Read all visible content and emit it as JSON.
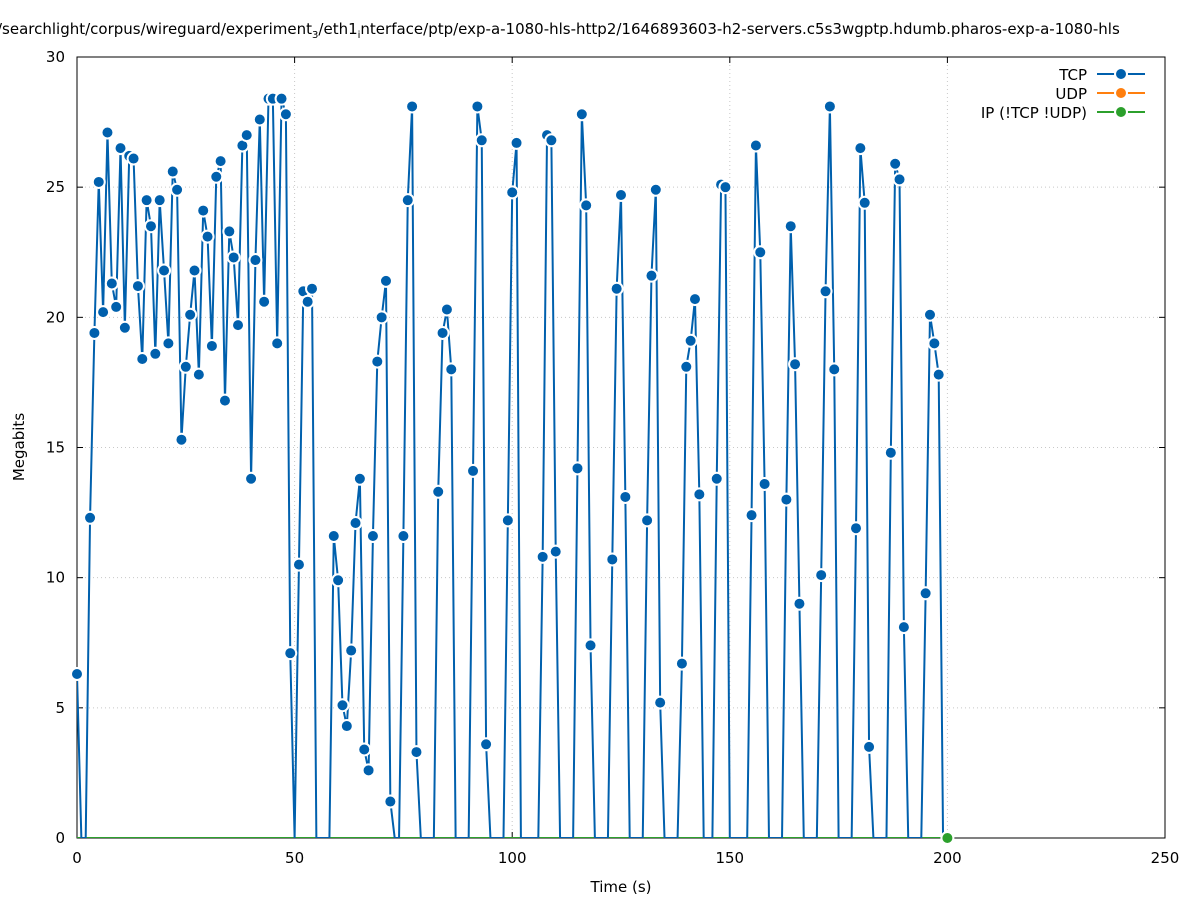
{
  "chart_data": {
    "type": "line",
    "title_parts": [
      "/searchlight/corpus/wireguard/experiment",
      "3",
      "/eth1",
      "i",
      "nterface/ptp/exp-a-1080-hls-http2/1646893603-h2-servers.c5s3wgptp.hdumb.pharos-exp-a-1080-hls"
    ],
    "xlabel": "Time (s)",
    "ylabel": "Megabits",
    "xlim": [
      0,
      250
    ],
    "ylim": [
      0,
      30
    ],
    "xticks": [
      0,
      50,
      100,
      150,
      200,
      250
    ],
    "yticks": [
      0,
      5,
      10,
      15,
      20,
      25,
      30
    ],
    "grid": true,
    "legend_position": "top-right",
    "series": [
      {
        "name": "TCP",
        "color": "#0060ad",
        "x_start": 0,
        "x_step": 1,
        "values": [
          6.3,
          0,
          0,
          12.3,
          19.4,
          25.2,
          20.2,
          27.1,
          21.3,
          20.4,
          26.5,
          19.6,
          26.2,
          26.1,
          21.2,
          18.4,
          24.5,
          23.5,
          18.6,
          24.5,
          21.8,
          19.0,
          25.6,
          24.9,
          15.3,
          18.1,
          20.1,
          21.8,
          17.8,
          24.1,
          23.1,
          18.9,
          25.4,
          26.0,
          16.8,
          23.3,
          22.3,
          19.7,
          26.6,
          27.0,
          13.8,
          22.2,
          27.6,
          20.6,
          28.4,
          28.4,
          19.0,
          28.4,
          27.8,
          7.1,
          0,
          10.5,
          21.0,
          20.6,
          21.1,
          0,
          0,
          0,
          0,
          11.6,
          9.9,
          5.1,
          4.3,
          7.2,
          12.1,
          13.8,
          3.4,
          2.6,
          11.6,
          18.3,
          20.0,
          21.4,
          1.4,
          0,
          0,
          11.6,
          24.5,
          28.1,
          3.3,
          0,
          0,
          0,
          0,
          13.3,
          19.4,
          20.3,
          18.0,
          0,
          0,
          0,
          0,
          14.1,
          28.1,
          26.8,
          3.6,
          0,
          0,
          0,
          0,
          12.2,
          24.8,
          26.7,
          0,
          0,
          0,
          0,
          0,
          10.8,
          27.0,
          26.8,
          11.0,
          0,
          0,
          0,
          0,
          14.2,
          27.8,
          24.3,
          7.4,
          0,
          0,
          0,
          0,
          10.7,
          21.1,
          24.7,
          13.1,
          0,
          0,
          0,
          0,
          12.2,
          21.6,
          24.9,
          5.2,
          0,
          0,
          0,
          0,
          6.7,
          18.1,
          19.1,
          20.7,
          13.2,
          0,
          0,
          0,
          13.8,
          25.1,
          25.0,
          0,
          0,
          0,
          0,
          0,
          12.4,
          26.6,
          22.5,
          13.6,
          0,
          0,
          0,
          0,
          13.0,
          23.5,
          18.2,
          9.0,
          0,
          0,
          0,
          0,
          10.1,
          21.0,
          28.1,
          18.0,
          0,
          0,
          0,
          0,
          11.9,
          26.5,
          24.4,
          3.5,
          0,
          0,
          0,
          0,
          14.8,
          25.9,
          25.3,
          8.1,
          0,
          0,
          0,
          0,
          9.4,
          20.1,
          19.0,
          17.8,
          0,
          0
        ]
      },
      {
        "name": "UDP",
        "color": "#ff7f0e",
        "values": []
      },
      {
        "name": "IP (!TCP  !UDP)",
        "color": "#2ca02c",
        "x_start": 0,
        "x_step": 1,
        "values_constant": 0,
        "x_end": 200
      }
    ]
  }
}
